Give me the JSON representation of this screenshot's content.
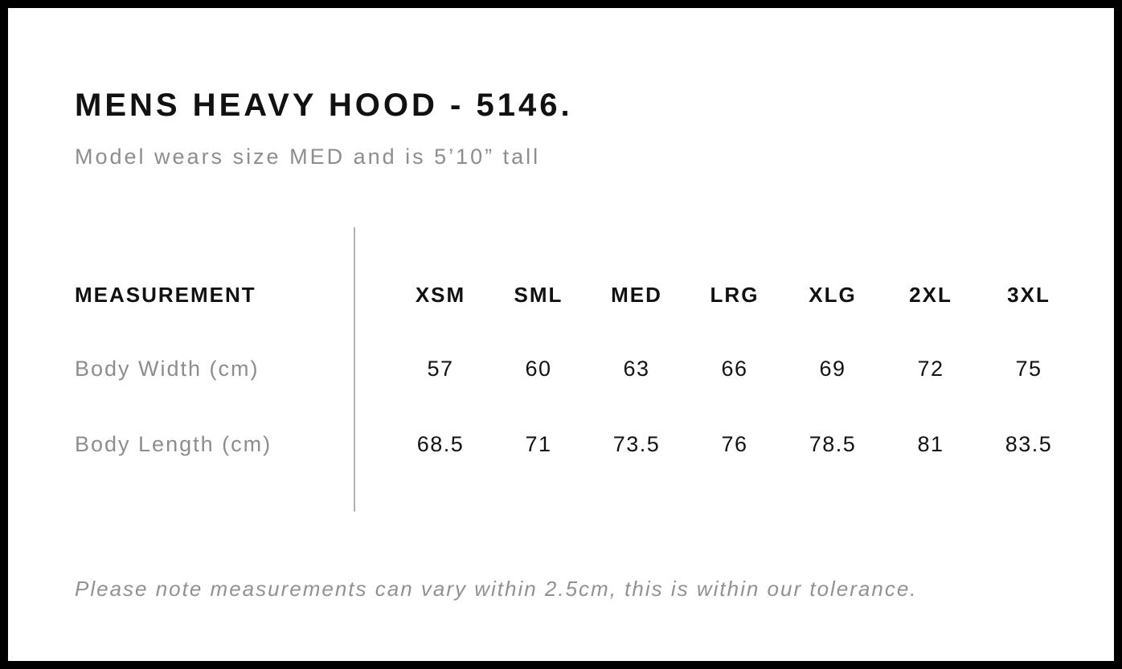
{
  "page": {
    "title": "MENS HEAVY HOOD - 5146.",
    "subtitle": "Model wears size MED and is 5’10” tall",
    "tolerance_note": "Please note measurements can vary within 2.5cm, this is within our tolerance."
  },
  "size_chart": {
    "label_header": "MEASUREMENT",
    "size_headers": [
      "XSM",
      "SML",
      "MED",
      "LRG",
      "XLG",
      "2XL",
      "3XL"
    ],
    "rows": [
      {
        "label": "Body Width (cm)",
        "values": [
          "57",
          "60",
          "63",
          "66",
          "69",
          "72",
          "75"
        ]
      },
      {
        "label": "Body Length (cm)",
        "values": [
          "68.5",
          "71",
          "73.5",
          "76",
          "78.5",
          "81",
          "83.5"
        ]
      }
    ]
  },
  "colors": {
    "text": "#111111",
    "muted_gray": "#8d8d8d",
    "divider_gray": "#b3b3b3",
    "frame_border": "#000000"
  }
}
